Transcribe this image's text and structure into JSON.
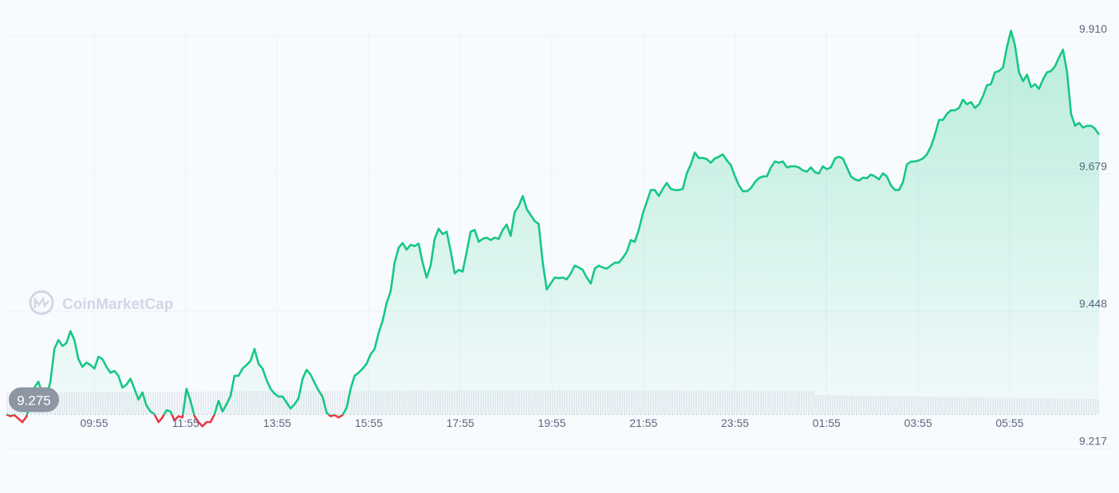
{
  "brand": {
    "watermark": "CoinMarketCap"
  },
  "colors": {
    "up": "#16c784",
    "down": "#ea3943",
    "grid": "#eef1f6",
    "baseline": "#c5cbd6",
    "badge": "#8e96a4",
    "volume": "#e8ebf2"
  },
  "chart_data": {
    "type": "area",
    "baseline_value": 9.275,
    "baseline_label": "9.275",
    "ylim": [
      9.155,
      9.958
    ],
    "y_ticks": [
      {
        "value": 9.91,
        "label": "9.910"
      },
      {
        "value": 9.679,
        "label": "9.679"
      },
      {
        "value": 9.448,
        "label": "9.448"
      },
      {
        "value": 9.217,
        "label": "9.217"
      }
    ],
    "x_ticks": [
      "09:55",
      "11:55",
      "13:55",
      "15:55",
      "17:55",
      "19:55",
      "21:55",
      "23:55",
      "01:55",
      "03:55",
      "05:55"
    ],
    "x_range_hours": [
      8.0,
      31.87
    ],
    "first_tick_hour": 9.9167,
    "series": [
      {
        "values": [
          9.275,
          9.272,
          9.274,
          9.268,
          9.262,
          9.271,
          9.295,
          9.32,
          9.33,
          9.31,
          9.305,
          9.33,
          9.385,
          9.4,
          9.39,
          9.395,
          9.415,
          9.4,
          9.368,
          9.355,
          9.362,
          9.358,
          9.352,
          9.372,
          9.368,
          9.355,
          9.345,
          9.348,
          9.34,
          9.32,
          9.325,
          9.335,
          9.318,
          9.3,
          9.312,
          9.29,
          9.28,
          9.275,
          9.262,
          9.27,
          9.282,
          9.28,
          9.265,
          9.272,
          9.27,
          9.318,
          9.298,
          9.272,
          9.262,
          9.255,
          9.262,
          9.262,
          9.275,
          9.298,
          9.28,
          9.292,
          9.306,
          9.34,
          9.34,
          9.352,
          9.358,
          9.365,
          9.385,
          9.36,
          9.352,
          9.333,
          9.318,
          9.31,
          9.305,
          9.305,
          9.295,
          9.285,
          9.292,
          9.302,
          9.335,
          9.35,
          9.342,
          9.328,
          9.315,
          9.305,
          9.278,
          9.272,
          9.274,
          9.27,
          9.274,
          9.286,
          9.318,
          9.34,
          9.345,
          9.352,
          9.36,
          9.376,
          9.385,
          9.412,
          9.432,
          9.462,
          9.482,
          9.53,
          9.555,
          9.563,
          9.552,
          9.56,
          9.558,
          9.562,
          9.53,
          9.505,
          9.525,
          9.57,
          9.587,
          9.578,
          9.582,
          9.55,
          9.512,
          9.518,
          9.515,
          9.548,
          9.582,
          9.585,
          9.565,
          9.57,
          9.572,
          9.568,
          9.572,
          9.57,
          9.585,
          9.594,
          9.575,
          9.615,
          9.625,
          9.642,
          9.62,
          9.61,
          9.6,
          9.595,
          9.53,
          9.485,
          9.495,
          9.505,
          9.504,
          9.505,
          9.502,
          9.512,
          9.525,
          9.522,
          9.518,
          9.505,
          9.495,
          9.52,
          9.525,
          9.522,
          9.52,
          9.525,
          9.53,
          9.53,
          9.538,
          9.548,
          9.568,
          9.565,
          9.585,
          9.612,
          9.632,
          9.652,
          9.652,
          9.642,
          9.654,
          9.664,
          9.654,
          9.652,
          9.652,
          9.654,
          9.68,
          9.695,
          9.715,
          9.706,
          9.706,
          9.704,
          9.698,
          9.705,
          9.708,
          9.712,
          9.702,
          9.694,
          9.676,
          9.66,
          9.65,
          9.65,
          9.655,
          9.665,
          9.672,
          9.675,
          9.675,
          9.69,
          9.7,
          9.698,
          9.7,
          9.69,
          9.692,
          9.692,
          9.69,
          9.685,
          9.683,
          9.69,
          9.682,
          9.68,
          9.692,
          9.687,
          9.69,
          9.705,
          9.708,
          9.705,
          9.69,
          9.675,
          9.67,
          9.668,
          9.673,
          9.672,
          9.678,
          9.675,
          9.67,
          9.68,
          9.675,
          9.66,
          9.652,
          9.652,
          9.665,
          9.695,
          9.7,
          9.7,
          9.702,
          9.705,
          9.712,
          9.725,
          9.745,
          9.77,
          9.77,
          9.78,
          9.786,
          9.786,
          9.79,
          9.804,
          9.796,
          9.8,
          9.79,
          9.796,
          9.81,
          9.828,
          9.83,
          9.85,
          9.852,
          9.858,
          9.893,
          9.92,
          9.895,
          9.85,
          9.835,
          9.846,
          9.825,
          9.83,
          9.822,
          9.838,
          9.85,
          9.852,
          9.86,
          9.875,
          9.888,
          9.85,
          9.78,
          9.76,
          9.765,
          9.757,
          9.76,
          9.76,
          9.755,
          9.745
        ]
      }
    ]
  }
}
